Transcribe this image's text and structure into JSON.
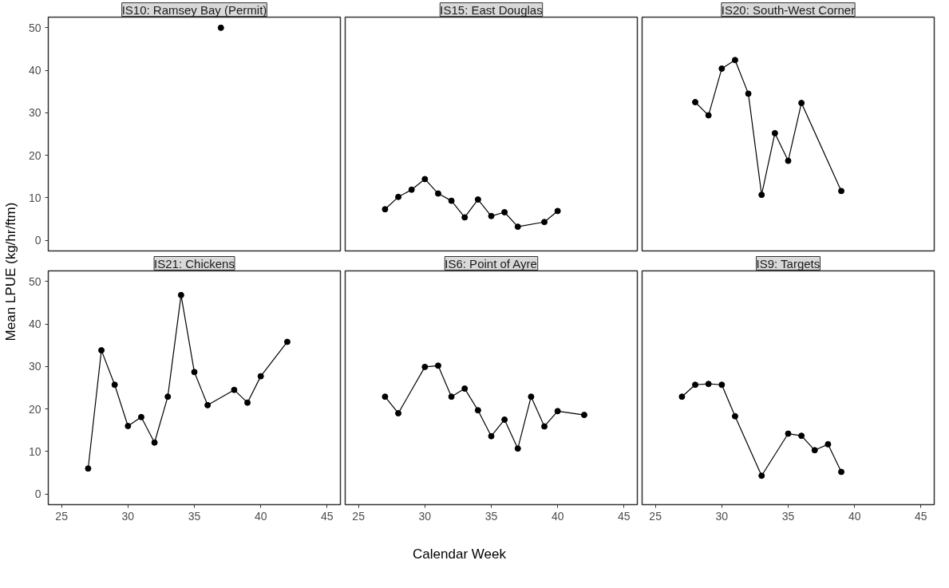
{
  "chart_data": [
    {
      "type": "line",
      "title": "IS10: Ramsey Bay (Permit)",
      "ylabel": "Mean LPUE (kg/hr/ftm)",
      "x": [
        37
      ],
      "series": [
        {
          "color": "#000000",
          "values": [
            50
          ]
        }
      ],
      "xlim": [
        24,
        46
      ],
      "ylim": [
        -2.5,
        52.5
      ],
      "xticks": [
        25,
        30,
        35,
        40,
        45
      ],
      "yticks": [
        0,
        10,
        20,
        30,
        40,
        50
      ],
      "tick_labels": "y",
      "marker": "circle",
      "line_style": "solid"
    },
    {
      "type": "line",
      "title": "IS15: East Douglas",
      "x": [
        27,
        28,
        29,
        30,
        31,
        32,
        33,
        34,
        35,
        36,
        37,
        39,
        40
      ],
      "series": [
        {
          "color": "#000000",
          "values": [
            7.3,
            10.2,
            11.9,
            14.4,
            11.0,
            9.3,
            5.4,
            9.6,
            5.7,
            6.6,
            3.2,
            4.3,
            6.9
          ]
        }
      ],
      "xlim": [
        24,
        46
      ],
      "ylim": [
        -2.5,
        52.5
      ],
      "xticks": [
        25,
        30,
        35,
        40,
        45
      ],
      "yticks": [
        0,
        10,
        20,
        30,
        40,
        50
      ],
      "tick_labels": false,
      "marker": "circle",
      "line_style": "solid"
    },
    {
      "type": "line",
      "title": "IS20: South-West Corner",
      "x": [
        28,
        29,
        30,
        31,
        32,
        33,
        34,
        35,
        36,
        39
      ],
      "series": [
        {
          "color": "#000000",
          "values": [
            32.5,
            29.4,
            40.4,
            42.4,
            34.5,
            10.7,
            25.2,
            18.7,
            32.3,
            11.6
          ]
        }
      ],
      "xlim": [
        24,
        46
      ],
      "ylim": [
        -2.5,
        52.5
      ],
      "xticks": [
        25,
        30,
        35,
        40,
        45
      ],
      "yticks": [
        0,
        10,
        20,
        30,
        40,
        50
      ],
      "tick_labels": false,
      "marker": "circle",
      "line_style": "solid"
    },
    {
      "type": "line",
      "title": "IS21: Chickens",
      "x": [
        27,
        28,
        29,
        30,
        31,
        32,
        33,
        34,
        35,
        36,
        38,
        39,
        40,
        42
      ],
      "series": [
        {
          "color": "#000000",
          "values": [
            6.0,
            33.8,
            25.7,
            16.0,
            18.1,
            12.1,
            22.9,
            46.8,
            28.7,
            20.9,
            24.5,
            21.5,
            27.7,
            35.8
          ]
        }
      ],
      "xlim": [
        24,
        46
      ],
      "ylim": [
        -2.5,
        52.5
      ],
      "xticks": [
        25,
        30,
        35,
        40,
        45
      ],
      "yticks": [
        0,
        10,
        20,
        30,
        40,
        50
      ],
      "marker": "circle",
      "line_style": "solid"
    },
    {
      "type": "line",
      "title": "IS6: Point of Ayre",
      "xlabel": "Calendar Week",
      "x": [
        27,
        28,
        30,
        31,
        32,
        33,
        34,
        35,
        36,
        37,
        38,
        39,
        40,
        42
      ],
      "series": [
        {
          "color": "#000000",
          "values": [
            22.9,
            19.0,
            29.9,
            30.2,
            22.9,
            24.8,
            19.7,
            13.6,
            17.5,
            10.7,
            22.9,
            15.9,
            19.5,
            18.6
          ]
        }
      ],
      "xlim": [
        24,
        46
      ],
      "ylim": [
        -2.5,
        52.5
      ],
      "xticks": [
        25,
        30,
        35,
        40,
        45
      ],
      "yticks": [
        0,
        10,
        20,
        30,
        40,
        50
      ],
      "tick_labels": "x",
      "marker": "circle",
      "line_style": "solid"
    },
    {
      "type": "line",
      "title": "IS9: Targets",
      "x": [
        27,
        28,
        29,
        30,
        31,
        33,
        35,
        36,
        37,
        38,
        39
      ],
      "series": [
        {
          "color": "#000000",
          "values": [
            22.9,
            25.7,
            25.9,
            25.7,
            18.3,
            4.3,
            14.2,
            13.7,
            10.3,
            11.7,
            5.2
          ]
        }
      ],
      "xlim": [
        24,
        46
      ],
      "ylim": [
        -2.5,
        52.5
      ],
      "xticks": [
        25,
        30,
        35,
        40,
        45
      ],
      "yticks": [
        0,
        10,
        20,
        30,
        40,
        50
      ],
      "tick_labels": "x",
      "marker": "circle",
      "line_style": "solid"
    }
  ]
}
